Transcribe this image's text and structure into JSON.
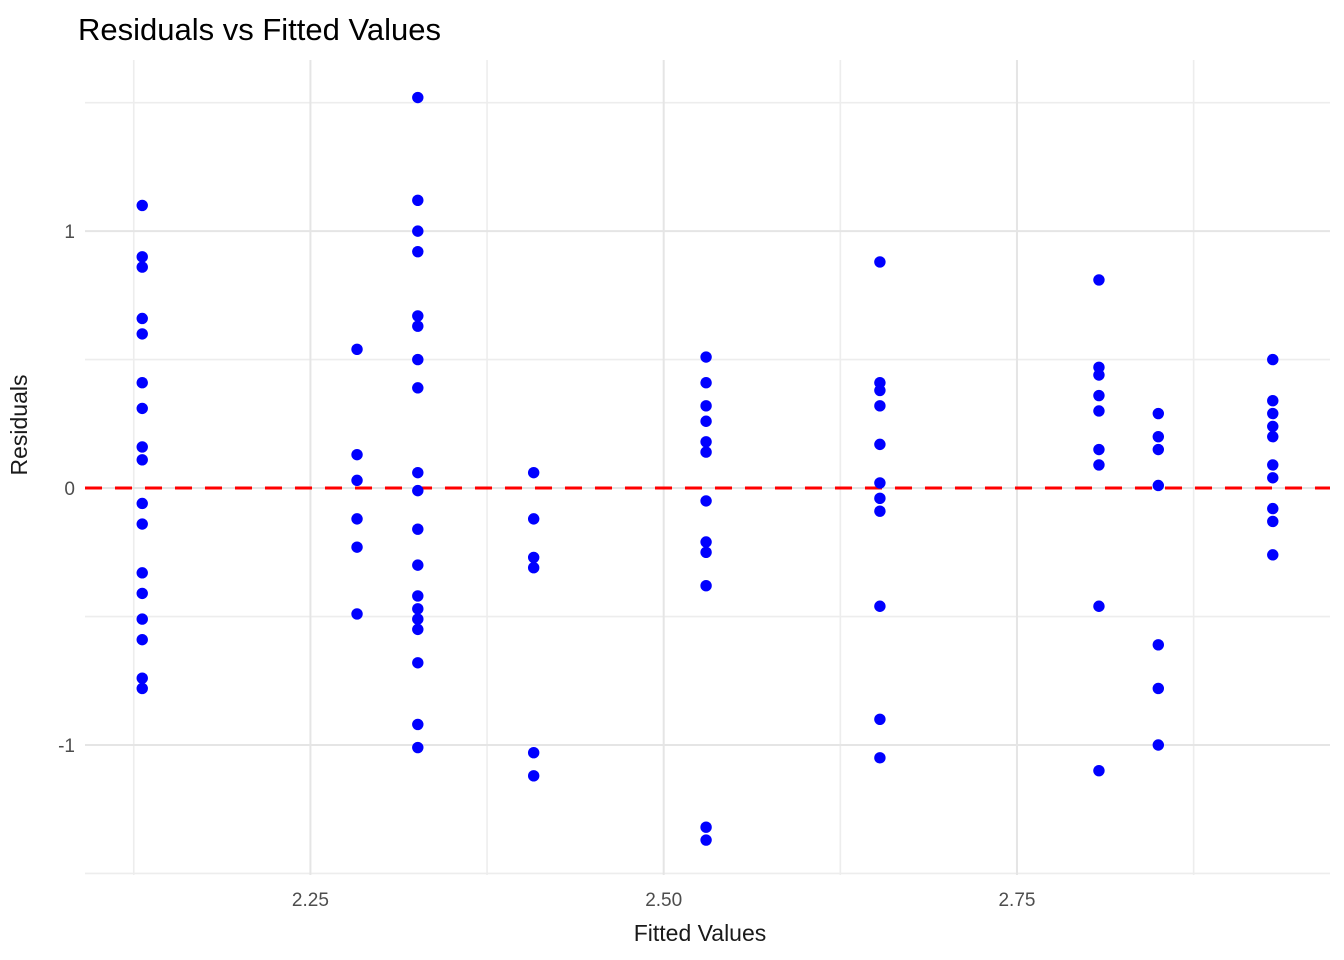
{
  "title": "Residuals vs Fitted Values",
  "colors": {
    "background": "#ffffff",
    "point": "#0000ff",
    "reference_line": "#ff0000",
    "grid_major": "#e5e5e5",
    "grid_minor": "#ededed",
    "tick_text": "#4d4d4d",
    "title_text": "#000000",
    "axis_title_text": "#1a1a1a"
  },
  "chart_data": {
    "type": "scatter",
    "title": "Residuals vs Fitted Values",
    "xlabel": "Fitted Values",
    "ylabel": "Residuals",
    "xlim": [
      2.0905,
      2.9715
    ],
    "ylim": [
      -1.506,
      1.666
    ],
    "x_ticks": [
      2.25,
      2.5,
      2.75
    ],
    "x_tick_labels": [
      "2.25",
      "2.50",
      "2.75"
    ],
    "y_ticks": [
      1,
      0,
      -1
    ],
    "y_tick_labels": [
      "1",
      "0",
      "-1"
    ],
    "x_minor_ticks": [
      2.125,
      2.375,
      2.625,
      2.875
    ],
    "y_minor_ticks": [
      1.5,
      0.5,
      -0.5,
      -1.5
    ],
    "grid": true,
    "legend": "none",
    "reference_line": {
      "y": 0,
      "style": "dashed",
      "color": "#ff0000",
      "width": 3,
      "dash": [
        17,
        13
      ]
    },
    "point_style": {
      "color": "#0000ff",
      "radius": 5.7
    },
    "series": [
      {
        "name": "residuals",
        "color": "#0000ff",
        "points": [
          [
            2.131,
            1.1
          ],
          [
            2.131,
            0.9
          ],
          [
            2.131,
            0.86
          ],
          [
            2.131,
            0.66
          ],
          [
            2.131,
            0.6
          ],
          [
            2.131,
            0.41
          ],
          [
            2.131,
            0.31
          ],
          [
            2.131,
            0.16
          ],
          [
            2.131,
            0.11
          ],
          [
            2.131,
            -0.06
          ],
          [
            2.131,
            -0.14
          ],
          [
            2.131,
            -0.33
          ],
          [
            2.131,
            -0.41
          ],
          [
            2.131,
            -0.51
          ],
          [
            2.131,
            -0.59
          ],
          [
            2.131,
            -0.74
          ],
          [
            2.131,
            -0.78
          ],
          [
            2.283,
            0.54
          ],
          [
            2.283,
            0.13
          ],
          [
            2.283,
            0.03
          ],
          [
            2.283,
            -0.12
          ],
          [
            2.283,
            -0.23
          ],
          [
            2.283,
            -0.49
          ],
          [
            2.326,
            1.52
          ],
          [
            2.326,
            1.12
          ],
          [
            2.326,
            1.0
          ],
          [
            2.326,
            0.92
          ],
          [
            2.326,
            0.67
          ],
          [
            2.326,
            0.63
          ],
          [
            2.326,
            0.5
          ],
          [
            2.326,
            0.39
          ],
          [
            2.326,
            0.06
          ],
          [
            2.326,
            -0.01
          ],
          [
            2.326,
            -0.16
          ],
          [
            2.326,
            -0.3
          ],
          [
            2.326,
            -0.42
          ],
          [
            2.326,
            -0.47
          ],
          [
            2.326,
            -0.51
          ],
          [
            2.326,
            -0.55
          ],
          [
            2.326,
            -0.68
          ],
          [
            2.326,
            -0.92
          ],
          [
            2.326,
            -1.01
          ],
          [
            2.408,
            0.06
          ],
          [
            2.408,
            -0.12
          ],
          [
            2.408,
            -0.27
          ],
          [
            2.408,
            -0.31
          ],
          [
            2.408,
            -1.03
          ],
          [
            2.408,
            -1.12
          ],
          [
            2.53,
            0.51
          ],
          [
            2.53,
            0.41
          ],
          [
            2.53,
            0.32
          ],
          [
            2.53,
            0.26
          ],
          [
            2.53,
            0.18
          ],
          [
            2.53,
            0.14
          ],
          [
            2.53,
            -0.05
          ],
          [
            2.53,
            -0.21
          ],
          [
            2.53,
            -0.25
          ],
          [
            2.53,
            -0.38
          ],
          [
            2.53,
            -1.32
          ],
          [
            2.53,
            -1.37
          ],
          [
            2.653,
            0.88
          ],
          [
            2.653,
            0.41
          ],
          [
            2.653,
            0.38
          ],
          [
            2.653,
            0.32
          ],
          [
            2.653,
            0.17
          ],
          [
            2.653,
            0.02
          ],
          [
            2.653,
            -0.04
          ],
          [
            2.653,
            -0.09
          ],
          [
            2.653,
            -0.46
          ],
          [
            2.653,
            -0.9
          ],
          [
            2.653,
            -1.05
          ],
          [
            2.808,
            0.81
          ],
          [
            2.808,
            0.47
          ],
          [
            2.808,
            0.44
          ],
          [
            2.808,
            0.36
          ],
          [
            2.808,
            0.3
          ],
          [
            2.808,
            0.15
          ],
          [
            2.808,
            0.09
          ],
          [
            2.808,
            -0.46
          ],
          [
            2.808,
            -1.1
          ],
          [
            2.85,
            0.29
          ],
          [
            2.85,
            0.2
          ],
          [
            2.85,
            0.15
          ],
          [
            2.85,
            0.01
          ],
          [
            2.85,
            -0.61
          ],
          [
            2.85,
            -0.78
          ],
          [
            2.85,
            -1.0
          ],
          [
            2.931,
            0.5
          ],
          [
            2.931,
            0.34
          ],
          [
            2.931,
            0.29
          ],
          [
            2.931,
            0.24
          ],
          [
            2.931,
            0.2
          ],
          [
            2.931,
            0.09
          ],
          [
            2.931,
            0.04
          ],
          [
            2.931,
            -0.08
          ],
          [
            2.931,
            -0.13
          ],
          [
            2.931,
            -0.26
          ]
        ]
      }
    ]
  }
}
